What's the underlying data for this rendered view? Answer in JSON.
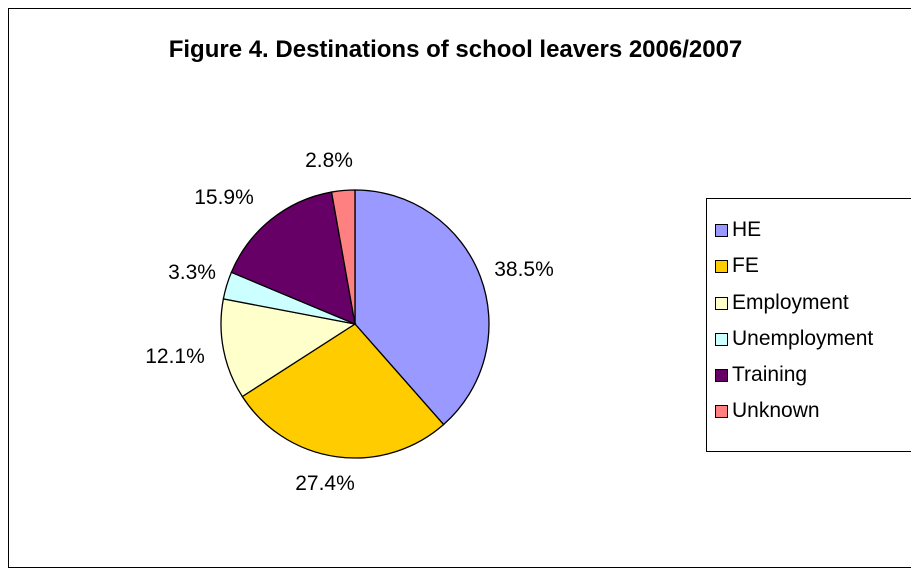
{
  "chart_data": {
    "type": "pie",
    "title": "Figure 4. Destinations of school leavers 2006/2007",
    "slices": [
      {
        "name": "HE",
        "value": 38.5,
        "label": "38.5%",
        "color": "#9999FF"
      },
      {
        "name": "FE",
        "value": 27.4,
        "label": "27.4%",
        "color": "#FFCC00"
      },
      {
        "name": "Employment",
        "value": 12.1,
        "label": "12.1%",
        "color": "#FFFFCC"
      },
      {
        "name": "Unemployment",
        "value": 3.3,
        "label": "3.3%",
        "color": "#CCFFFF"
      },
      {
        "name": "Training",
        "value": 15.9,
        "label": "15.9%",
        "color": "#660066"
      },
      {
        "name": "Unknown",
        "value": 2.8,
        "label": "2.8%",
        "color": "#FF8080"
      }
    ],
    "legend_position": "right"
  }
}
